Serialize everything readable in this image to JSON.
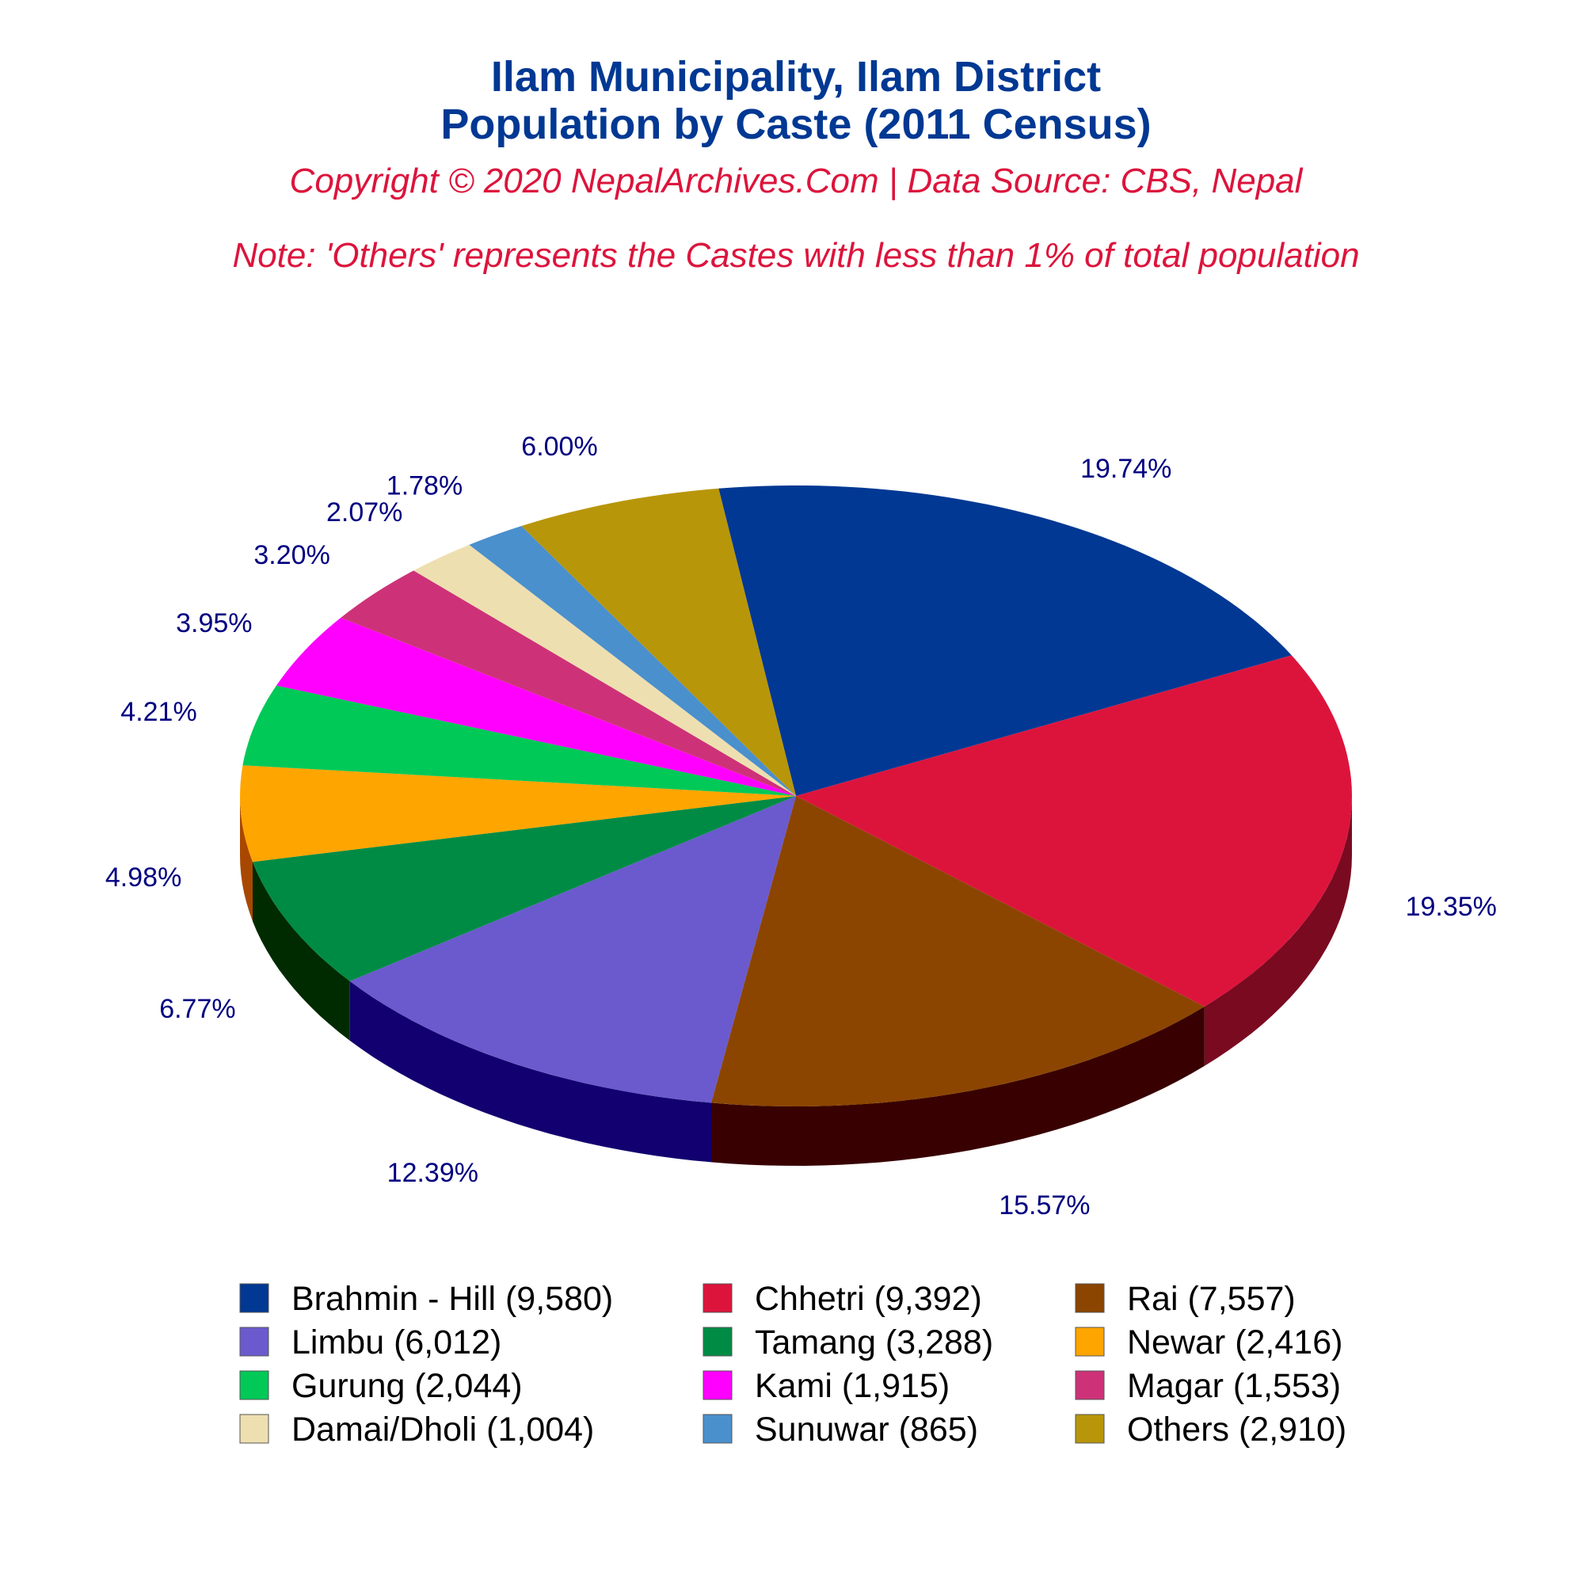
{
  "chart_data": {
    "type": "pie",
    "title": "Ilam Municipality, Ilam District",
    "title_line2": "Population by Caste (2011 Census)",
    "subtitle": "Copyright © 2020 NepalArchives.Com | Data Source: CBS, Nepal",
    "note": "Note: 'Others' represents the Castes with less than 1% of total population",
    "style": "3d",
    "legend_position": "bottom",
    "slices": [
      {
        "label": "Brahmin - Hill (9,580)",
        "value": 9580,
        "percent": "19.74%",
        "color": "#003893",
        "side_color": "#001e55"
      },
      {
        "label": "Chhetri (9,392)",
        "value": 9392,
        "percent": "19.35%",
        "color": "#dc143c",
        "side_color": "#7a0a20"
      },
      {
        "label": "Rai (7,557)",
        "value": 7557,
        "percent": "15.57%",
        "color": "#8b4500",
        "side_color": "#380000"
      },
      {
        "label": "Limbu (6,012)",
        "value": 6012,
        "percent": "12.39%",
        "color": "#6a5acd",
        "side_color": "#120070"
      },
      {
        "label": "Tamang (3,288)",
        "value": 3288,
        "percent": "6.77%",
        "color": "#008b45",
        "side_color": "#002b00"
      },
      {
        "label": "Newar (2,416)",
        "value": 2416,
        "percent": "4.98%",
        "color": "#ffa500",
        "side_color": "#a84800"
      },
      {
        "label": "Gurung (2,044)",
        "value": 2044,
        "percent": "4.21%",
        "color": "#00c957",
        "side_color": "#006600"
      },
      {
        "label": "Kami (1,915)",
        "value": 1915,
        "percent": "3.95%",
        "color": "#ff00ff",
        "side_color": "#a000a0"
      },
      {
        "label": "Magar (1,553)",
        "value": 1553,
        "percent": "3.20%",
        "color": "#cd3278",
        "side_color": "#700030"
      },
      {
        "label": "Damai/Dholi (1,004)",
        "value": 1004,
        "percent": "2.07%",
        "color": "#eedfb0",
        "side_color": "#a09070"
      },
      {
        "label": "Sunuwar (865)",
        "value": 865,
        "percent": "1.78%",
        "color": "#4a90cd",
        "side_color": "#20507a"
      },
      {
        "label": "Others (2,910)",
        "value": 2910,
        "percent": "6.00%",
        "color": "#b8960a",
        "side_color": "#6a5500"
      }
    ]
  }
}
